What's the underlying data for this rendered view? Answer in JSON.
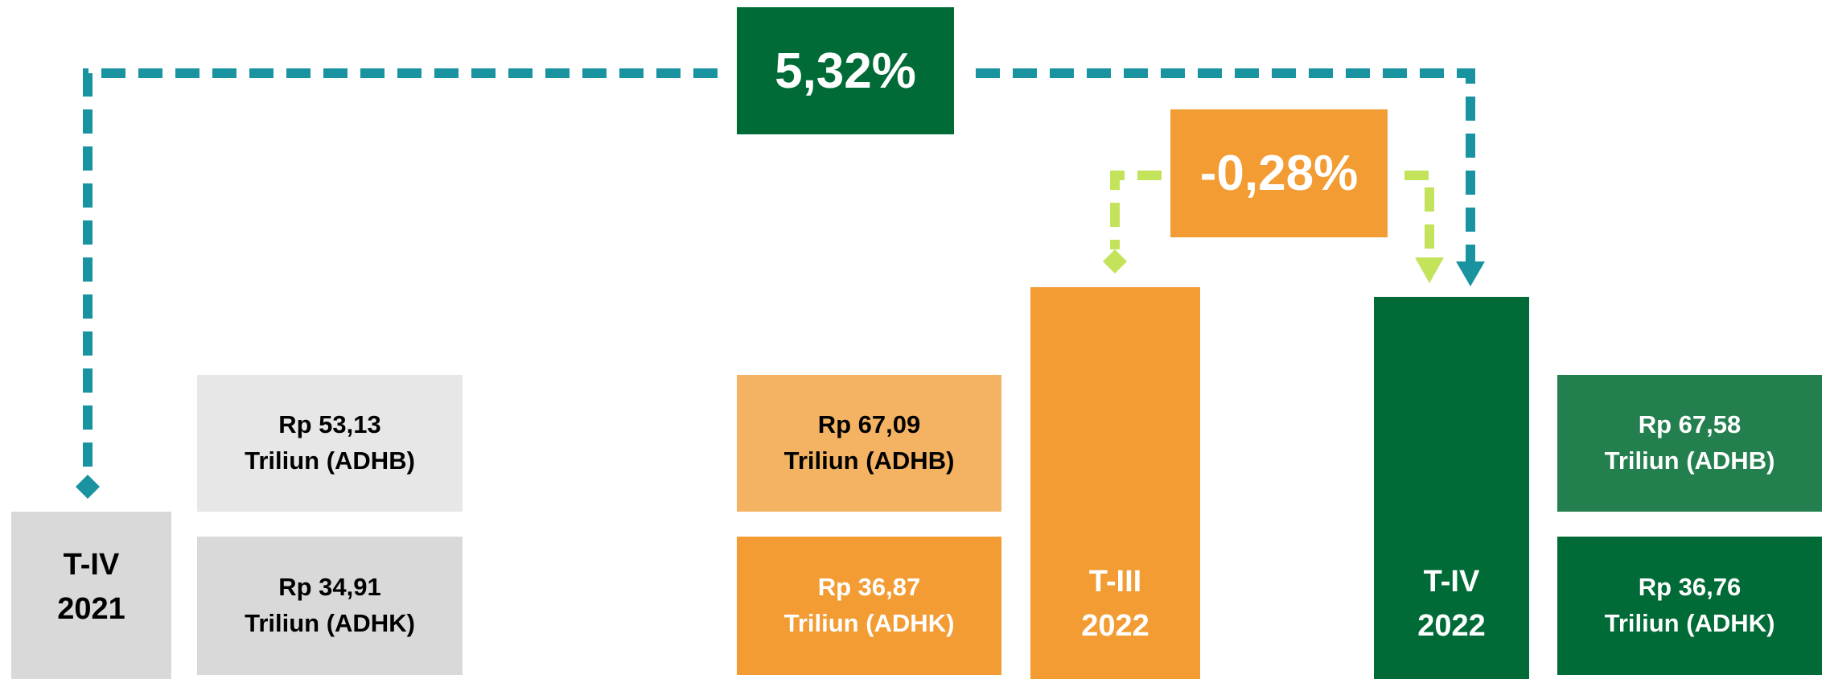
{
  "growth": {
    "yoy": "5,32%",
    "qoq": "-0,28%"
  },
  "periods": [
    {
      "name": "T-IV",
      "year": "2021",
      "adhb": {
        "amount": "Rp 53,13",
        "unit": "Triliun (ADHB)"
      },
      "adhk": {
        "amount": "Rp 34,91",
        "unit": "Triliun (ADHK)"
      }
    },
    {
      "name": "T-III",
      "year": "2022",
      "adhb": {
        "amount": "Rp 67,09",
        "unit": "Triliun (ADHB)"
      },
      "adhk": {
        "amount": "Rp 36,87",
        "unit": "Triliun (ADHK)"
      }
    },
    {
      "name": "T-IV",
      "year": "2022",
      "adhb": {
        "amount": "Rp 67,58",
        "unit": "Triliun (ADHB)"
      },
      "adhk": {
        "amount": "Rp 36,76",
        "unit": "Triliun (ADHK)"
      }
    }
  ]
}
